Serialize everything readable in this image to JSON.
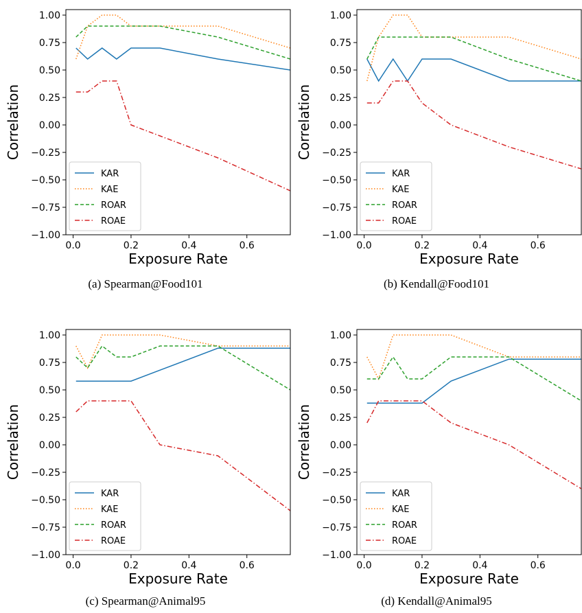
{
  "chart_data": [
    {
      "type": "line",
      "caption": "(a) Spearman@Food101",
      "xlabel": "Exposure Rate",
      "ylabel": "Correlation",
      "xlim": [
        -0.025,
        0.75
      ],
      "ylim": [
        -1.0,
        1.05
      ],
      "xticks": [
        0.0,
        0.2,
        0.4,
        0.6
      ],
      "xtick_labels": [
        "0.0",
        "0.2",
        "0.4",
        "0.6"
      ],
      "yticks": [
        -1.0,
        -0.75,
        -0.5,
        -0.25,
        0.0,
        0.25,
        0.5,
        0.75,
        1.0
      ],
      "ytick_labels": [
        "−1.00",
        "−0.75",
        "−0.50",
        "−0.25",
        "0.00",
        "0.25",
        "0.50",
        "0.75",
        "1.00"
      ],
      "grid": false,
      "legend_position": "lower-left",
      "x": [
        0.01,
        0.05,
        0.1,
        0.15,
        0.2,
        0.3,
        0.5,
        0.75
      ],
      "series": [
        {
          "name": "KAR",
          "color": "#1f77b4",
          "style": "solid",
          "values": [
            0.7,
            0.6,
            0.7,
            0.6,
            0.7,
            0.7,
            0.6,
            0.5
          ]
        },
        {
          "name": "KAE",
          "color": "#ff7f0e",
          "style": "dotted",
          "values": [
            0.6,
            0.9,
            1.0,
            1.0,
            0.9,
            0.9,
            0.9,
            0.7
          ]
        },
        {
          "name": "ROAR",
          "color": "#2ca02c",
          "style": "dashed",
          "values": [
            0.8,
            0.9,
            0.9,
            0.9,
            0.9,
            0.9,
            0.8,
            0.6
          ]
        },
        {
          "name": "ROAE",
          "color": "#d62728",
          "style": "dashdot",
          "values": [
            0.3,
            0.3,
            0.4,
            0.4,
            0.0,
            -0.1,
            -0.3,
            -0.6
          ]
        }
      ]
    },
    {
      "type": "line",
      "caption": "(b) Kendall@Food101",
      "xlabel": "Exposure Rate",
      "ylabel": "Correlation",
      "xlim": [
        -0.025,
        0.75
      ],
      "ylim": [
        -1.0,
        1.05
      ],
      "xticks": [
        0.0,
        0.2,
        0.4,
        0.6
      ],
      "xtick_labels": [
        "0.0",
        "0.2",
        "0.4",
        "0.6"
      ],
      "yticks": [
        -1.0,
        -0.75,
        -0.5,
        -0.25,
        0.0,
        0.25,
        0.5,
        0.75,
        1.0
      ],
      "ytick_labels": [
        "−1.00",
        "−0.75",
        "−0.50",
        "−0.25",
        "0.00",
        "0.25",
        "0.50",
        "0.75",
        "1.00"
      ],
      "grid": false,
      "legend_position": "lower-left",
      "x": [
        0.01,
        0.05,
        0.1,
        0.15,
        0.2,
        0.3,
        0.5,
        0.75
      ],
      "series": [
        {
          "name": "KAR",
          "color": "#1f77b4",
          "style": "solid",
          "values": [
            0.6,
            0.4,
            0.6,
            0.4,
            0.6,
            0.6,
            0.4,
            0.4
          ]
        },
        {
          "name": "KAE",
          "color": "#ff7f0e",
          "style": "dotted",
          "values": [
            0.4,
            0.8,
            1.0,
            1.0,
            0.8,
            0.8,
            0.8,
            0.6
          ]
        },
        {
          "name": "ROAR",
          "color": "#2ca02c",
          "style": "dashed",
          "values": [
            0.6,
            0.8,
            0.8,
            0.8,
            0.8,
            0.8,
            0.6,
            0.4
          ]
        },
        {
          "name": "ROAE",
          "color": "#d62728",
          "style": "dashdot",
          "values": [
            0.2,
            0.2,
            0.4,
            0.4,
            0.2,
            0.0,
            -0.2,
            -0.4
          ]
        }
      ]
    },
    {
      "type": "line",
      "caption": "(c) Spearman@Animal95",
      "xlabel": "Exposure Rate",
      "ylabel": "Correlation",
      "xlim": [
        -0.025,
        0.75
      ],
      "ylim": [
        -1.0,
        1.05
      ],
      "xticks": [
        0.0,
        0.2,
        0.4,
        0.6
      ],
      "xtick_labels": [
        "0.0",
        "0.2",
        "0.4",
        "0.6"
      ],
      "yticks": [
        -1.0,
        -0.75,
        -0.5,
        -0.25,
        0.0,
        0.25,
        0.5,
        0.75,
        1.0
      ],
      "ytick_labels": [
        "−1.00",
        "−0.75",
        "−0.50",
        "−0.25",
        "0.00",
        "0.25",
        "0.50",
        "0.75",
        "1.00"
      ],
      "grid": false,
      "legend_position": "lower-left",
      "x": [
        0.01,
        0.05,
        0.1,
        0.15,
        0.2,
        0.3,
        0.5,
        0.75
      ],
      "series": [
        {
          "name": "KAR",
          "color": "#1f77b4",
          "style": "solid",
          "values": [
            0.58,
            0.58,
            0.58,
            0.58,
            0.58,
            0.68,
            0.88,
            0.88
          ]
        },
        {
          "name": "KAE",
          "color": "#ff7f0e",
          "style": "dotted",
          "values": [
            0.9,
            0.7,
            1.0,
            1.0,
            1.0,
            1.0,
            0.9,
            0.9
          ]
        },
        {
          "name": "ROAR",
          "color": "#2ca02c",
          "style": "dashed",
          "values": [
            0.8,
            0.7,
            0.9,
            0.8,
            0.8,
            0.9,
            0.9,
            0.5
          ]
        },
        {
          "name": "ROAE",
          "color": "#d62728",
          "style": "dashdot",
          "values": [
            0.3,
            0.4,
            0.4,
            0.4,
            0.4,
            0.0,
            -0.1,
            -0.6
          ]
        }
      ]
    },
    {
      "type": "line",
      "caption": "(d) Kendall@Animal95",
      "xlabel": "Exposure Rate",
      "ylabel": "Correlation",
      "xlim": [
        -0.025,
        0.75
      ],
      "ylim": [
        -1.0,
        1.05
      ],
      "xticks": [
        0.0,
        0.2,
        0.4,
        0.6
      ],
      "xtick_labels": [
        "0.0",
        "0.2",
        "0.4",
        "0.6"
      ],
      "yticks": [
        -1.0,
        -0.75,
        -0.5,
        -0.25,
        0.0,
        0.25,
        0.5,
        0.75,
        1.0
      ],
      "ytick_labels": [
        "−1.00",
        "−0.75",
        "−0.50",
        "−0.25",
        "0.00",
        "0.25",
        "0.50",
        "0.75",
        "1.00"
      ],
      "grid": false,
      "legend_position": "lower-left",
      "x": [
        0.01,
        0.05,
        0.1,
        0.15,
        0.2,
        0.3,
        0.5,
        0.75
      ],
      "series": [
        {
          "name": "KAR",
          "color": "#1f77b4",
          "style": "solid",
          "values": [
            0.38,
            0.38,
            0.38,
            0.38,
            0.38,
            0.58,
            0.78,
            0.78
          ]
        },
        {
          "name": "KAE",
          "color": "#ff7f0e",
          "style": "dotted",
          "values": [
            0.8,
            0.6,
            1.0,
            1.0,
            1.0,
            1.0,
            0.8,
            0.8
          ]
        },
        {
          "name": "ROAR",
          "color": "#2ca02c",
          "style": "dashed",
          "values": [
            0.6,
            0.6,
            0.8,
            0.6,
            0.6,
            0.8,
            0.8,
            0.4
          ]
        },
        {
          "name": "ROAE",
          "color": "#d62728",
          "style": "dashdot",
          "values": [
            0.2,
            0.4,
            0.4,
            0.4,
            0.4,
            0.2,
            0.0,
            -0.4
          ]
        }
      ]
    }
  ]
}
